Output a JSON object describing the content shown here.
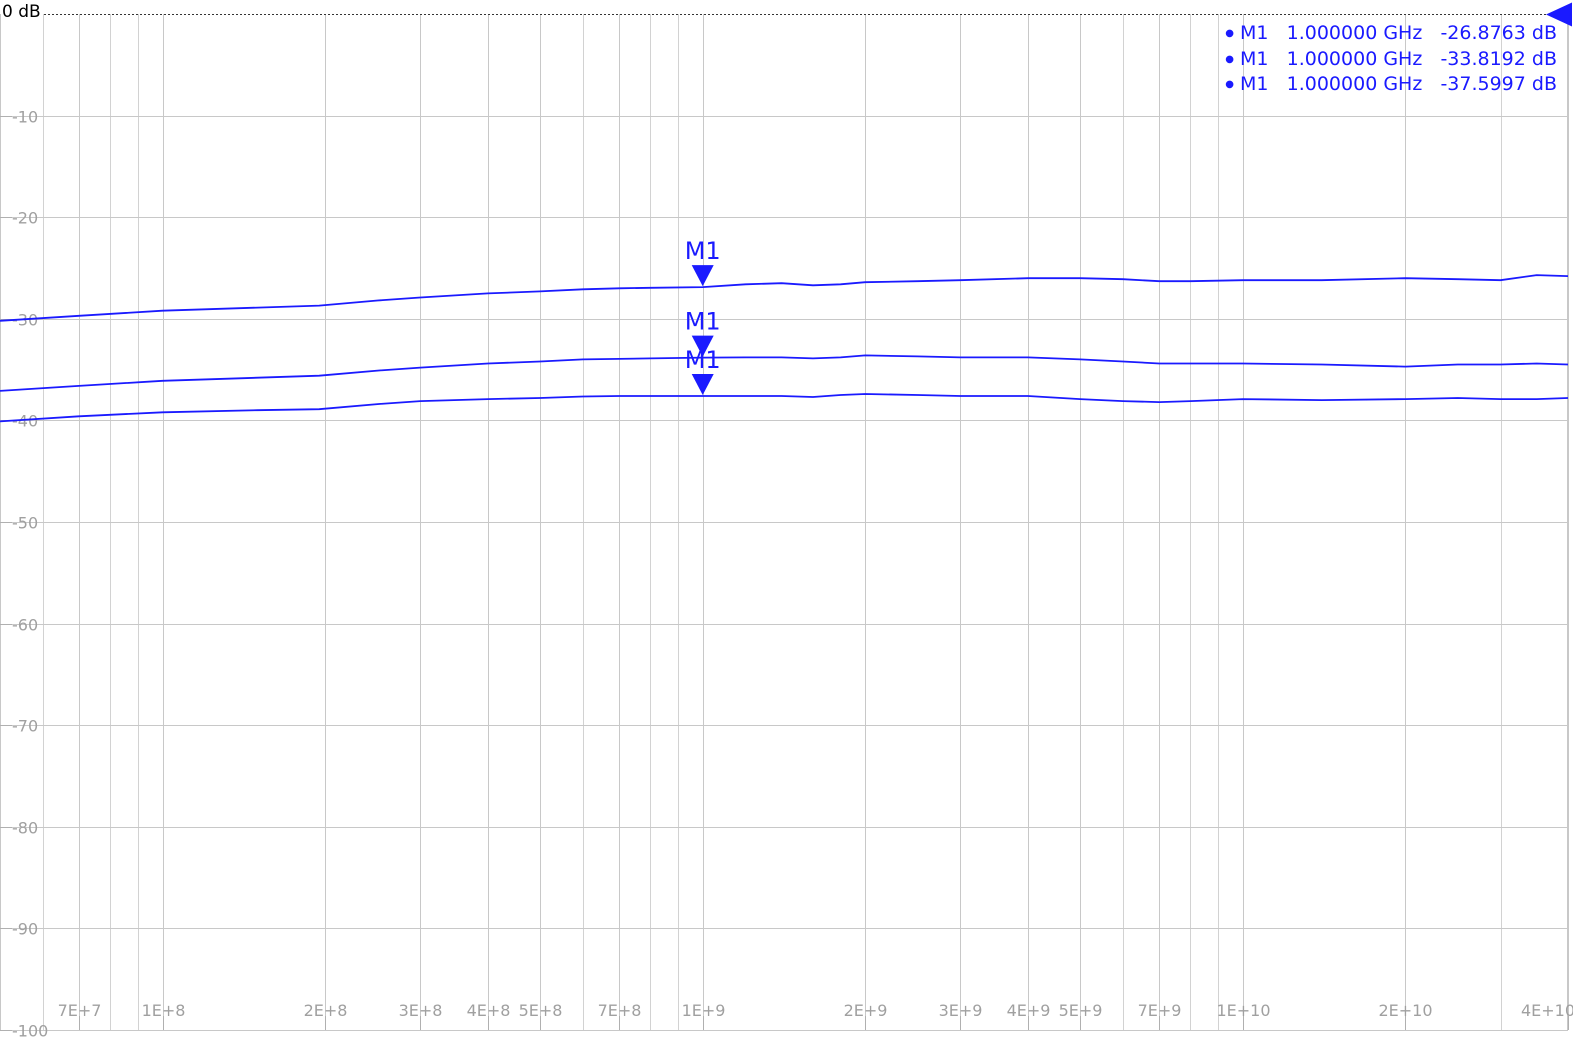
{
  "chart_data": {
    "type": "line",
    "x_scale": "log",
    "xlim": [
      50000000,
      40000000000
    ],
    "ylim": [
      -100,
      0
    ],
    "grid": true,
    "reference": {
      "label": "0 dB",
      "value": 0,
      "color": "#1a1aff"
    },
    "y_ticks": [
      {
        "value": -10,
        "label": "-10"
      },
      {
        "value": -20,
        "label": "-20"
      },
      {
        "value": -30,
        "label": "-30"
      },
      {
        "value": -40,
        "label": "-40"
      },
      {
        "value": -50,
        "label": "-50"
      },
      {
        "value": -60,
        "label": "-60"
      },
      {
        "value": -70,
        "label": "-70"
      },
      {
        "value": -80,
        "label": "-80"
      },
      {
        "value": -90,
        "label": "-90"
      },
      {
        "value": -100,
        "label": "-100"
      }
    ],
    "x_ticks": [
      {
        "value": 70000000,
        "label": "7E+7"
      },
      {
        "value": 100000000,
        "label": "1E+8"
      },
      {
        "value": 200000000,
        "label": "2E+8"
      },
      {
        "value": 300000000,
        "label": "3E+8"
      },
      {
        "value": 400000000,
        "label": "4E+8"
      },
      {
        "value": 500000000,
        "label": "5E+8"
      },
      {
        "value": 700000000,
        "label": "7E+8"
      },
      {
        "value": 1000000000,
        "label": "1E+9"
      },
      {
        "value": 2000000000,
        "label": "2E+9"
      },
      {
        "value": 3000000000,
        "label": "3E+9"
      },
      {
        "value": 4000000000,
        "label": "4E+9"
      },
      {
        "value": 5000000000,
        "label": "5E+9"
      },
      {
        "value": 7000000000,
        "label": "7E+9"
      },
      {
        "value": 10000000000,
        "label": "1E+10"
      },
      {
        "value": 20000000000,
        "label": "2E+10"
      },
      {
        "value": 40000000000,
        "label": "4E+10"
      }
    ],
    "minor_x_gridlines": [
      60000000,
      80000000,
      90000000,
      600000000,
      800000000,
      900000000,
      6000000000,
      8000000000,
      9000000000,
      30000000000
    ],
    "line_color": "#1a1aff",
    "series": [
      {
        "x": [
          50000000,
          70000000,
          100000000,
          150000000,
          195000000,
          250000000,
          300000000,
          400000000,
          500000000,
          600000000,
          700000000,
          800000000,
          1000000000,
          1200000000,
          1400000000,
          1600000000,
          1800000000,
          2000000000,
          2500000000,
          3000000000,
          4000000000,
          5000000000,
          6000000000,
          7000000000,
          8000000000,
          10000000000,
          14000000000,
          20000000000,
          25000000000,
          30000000000,
          35000000000,
          40000000000
        ],
        "y": [
          -30.2,
          -29.7,
          -29.2,
          -28.9,
          -28.7,
          -28.2,
          -27.9,
          -27.5,
          -27.3,
          -27.1,
          -27.0,
          -26.95,
          -26.88,
          -26.6,
          -26.5,
          -26.7,
          -26.6,
          -26.4,
          -26.3,
          -26.2,
          -26.0,
          -26.0,
          -26.1,
          -26.3,
          -26.3,
          -26.2,
          -26.2,
          -26.0,
          -26.1,
          -26.2,
          -25.7,
          -25.8
        ]
      },
      {
        "x": [
          50000000,
          70000000,
          100000000,
          150000000,
          195000000,
          250000000,
          300000000,
          400000000,
          500000000,
          600000000,
          700000000,
          800000000,
          1000000000,
          1200000000,
          1400000000,
          1600000000,
          1800000000,
          2000000000,
          2500000000,
          3000000000,
          4000000000,
          5000000000,
          6000000000,
          7000000000,
          8000000000,
          10000000000,
          14000000000,
          20000000000,
          25000000000,
          30000000000,
          35000000000,
          40000000000
        ],
        "y": [
          -37.1,
          -36.6,
          -36.1,
          -35.8,
          -35.6,
          -35.1,
          -34.8,
          -34.4,
          -34.2,
          -34.0,
          -33.95,
          -33.9,
          -33.82,
          -33.8,
          -33.8,
          -33.9,
          -33.8,
          -33.6,
          -33.7,
          -33.8,
          -33.8,
          -34.0,
          -34.2,
          -34.4,
          -34.4,
          -34.4,
          -34.5,
          -34.7,
          -34.5,
          -34.5,
          -34.4,
          -34.5
        ]
      },
      {
        "x": [
          50000000,
          70000000,
          100000000,
          150000000,
          195000000,
          250000000,
          300000000,
          400000000,
          500000000,
          600000000,
          700000000,
          800000000,
          1000000000,
          1200000000,
          1400000000,
          1600000000,
          1800000000,
          2000000000,
          2500000000,
          3000000000,
          4000000000,
          5000000000,
          6000000000,
          7000000000,
          8000000000,
          10000000000,
          14000000000,
          20000000000,
          25000000000,
          30000000000,
          35000000000,
          40000000000
        ],
        "y": [
          -40.1,
          -39.6,
          -39.2,
          -39.0,
          -38.9,
          -38.4,
          -38.1,
          -37.9,
          -37.8,
          -37.65,
          -37.6,
          -37.6,
          -37.6,
          -37.6,
          -37.6,
          -37.7,
          -37.5,
          -37.4,
          -37.5,
          -37.6,
          -37.6,
          -37.9,
          -38.1,
          -38.2,
          -38.1,
          -37.9,
          -38.0,
          -37.9,
          -37.8,
          -37.9,
          -37.9,
          -37.8
        ]
      }
    ],
    "markers": [
      {
        "label": "M1",
        "x": 1000000000,
        "y": -26.8763
      },
      {
        "label": "M1",
        "x": 1000000000,
        "y": -33.8192
      },
      {
        "label": "M1",
        "x": 1000000000,
        "y": -37.5997
      }
    ],
    "readout": [
      {
        "marker": "M1",
        "freq": "1.000000 GHz",
        "value": "-26.8763 dB"
      },
      {
        "marker": "M1",
        "freq": "1.000000 GHz",
        "value": "-33.8192 dB"
      },
      {
        "marker": "M1",
        "freq": "1.000000 GHz",
        "value": "-37.5997 dB"
      }
    ]
  }
}
